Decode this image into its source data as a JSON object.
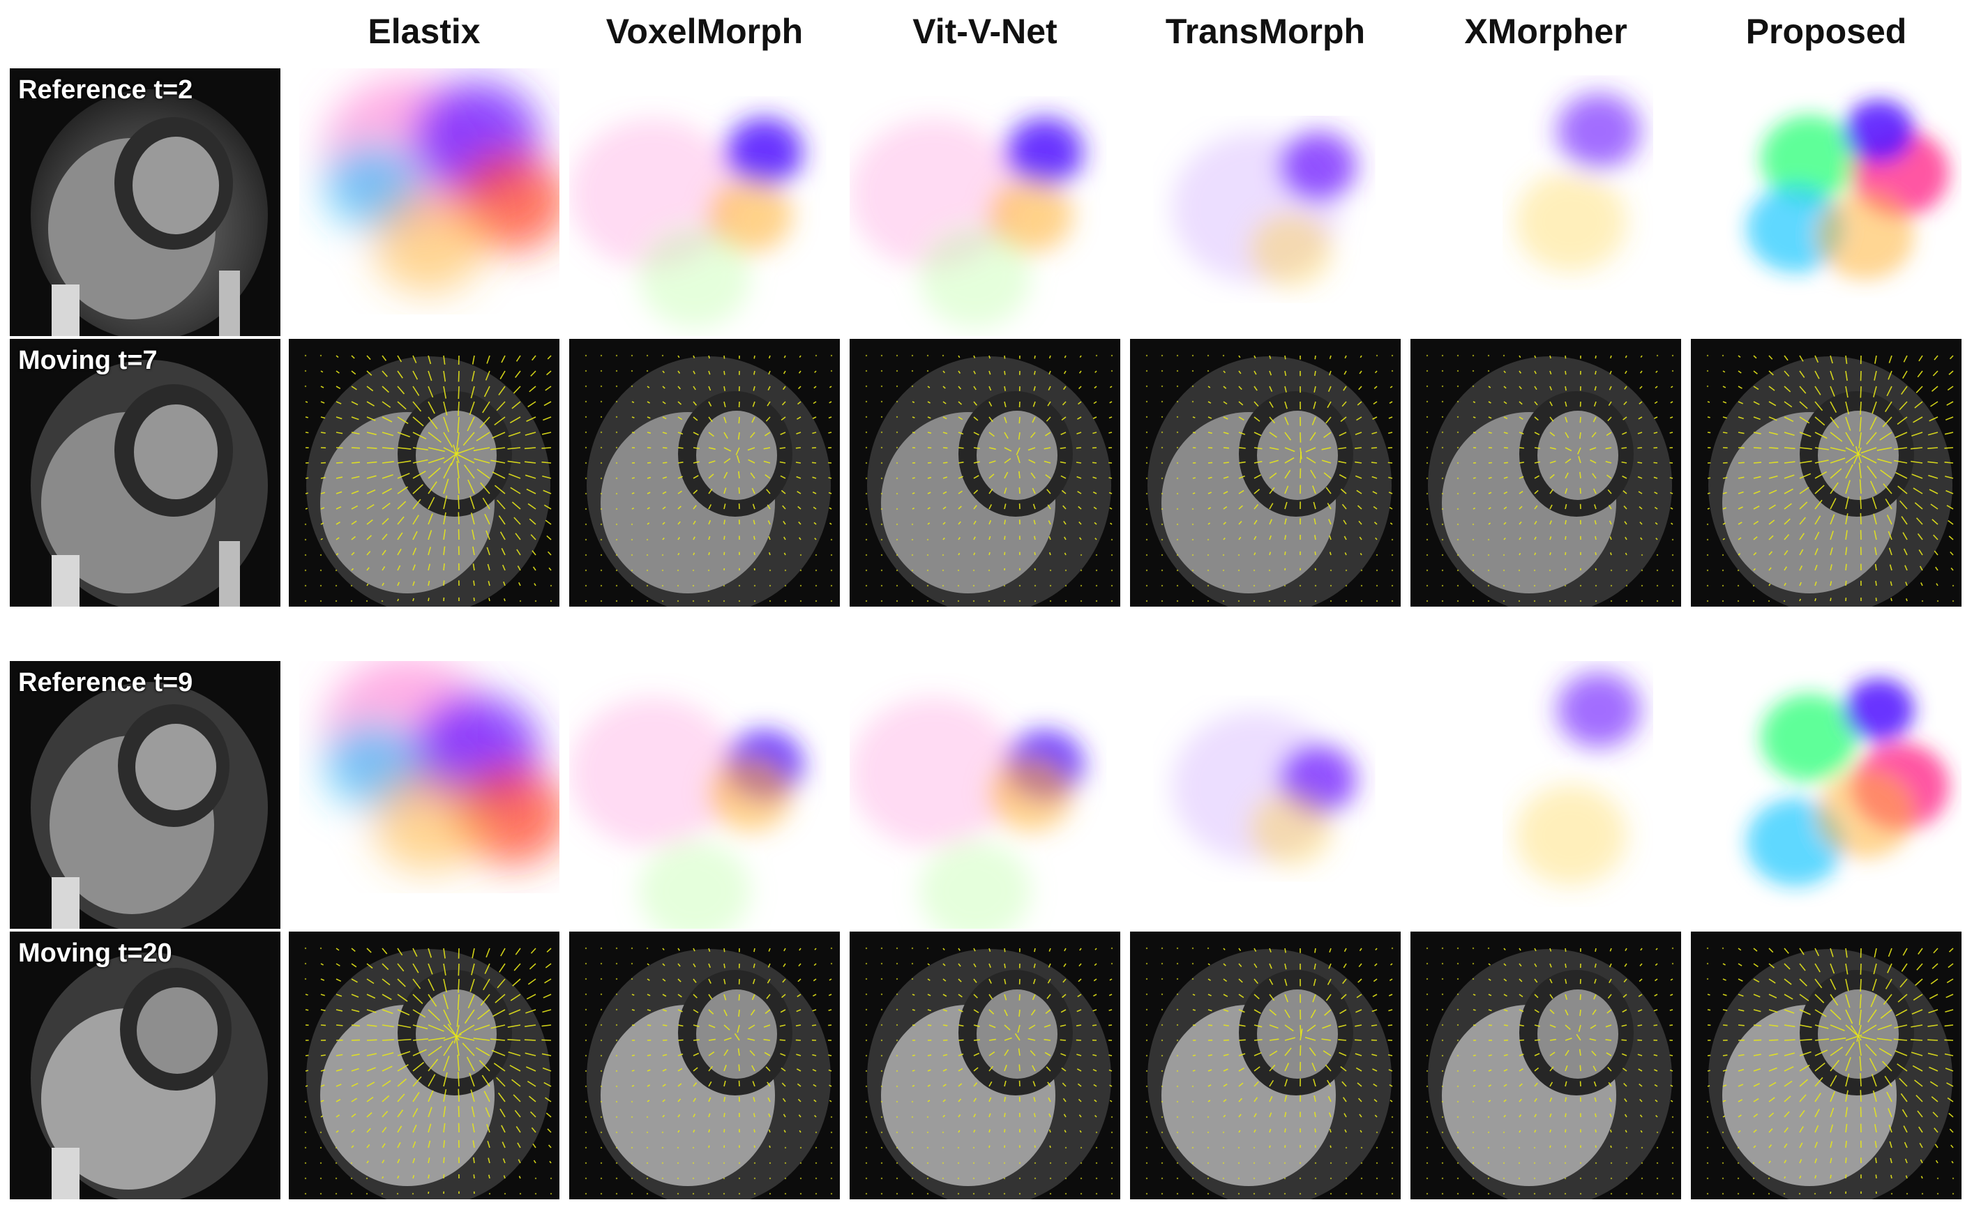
{
  "methods": [
    "Elastix",
    "VoxelMorph",
    "Vit-V-Net",
    "TransMorph",
    "XMorpher",
    "Proposed"
  ],
  "groups": [
    {
      "reference_label": "Reference t=2",
      "moving_label": "Moving t=7"
    },
    {
      "reference_label": "Reference t=9",
      "moving_label": "Moving t=20"
    }
  ],
  "colors": {
    "background": "#ffffff",
    "vector_arrows": "#e6e61a",
    "mri_background": "#0c0c0c"
  }
}
